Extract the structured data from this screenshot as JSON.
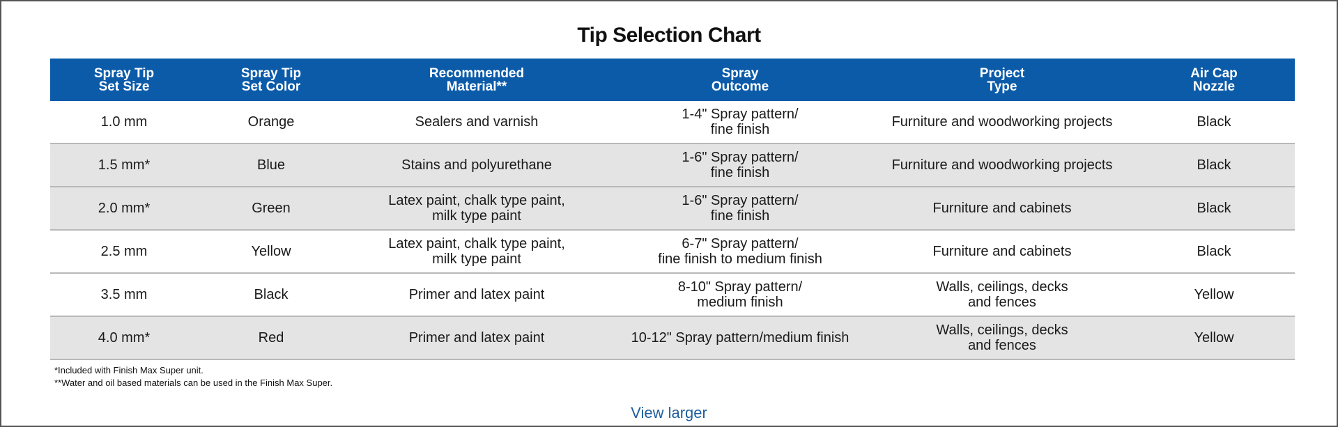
{
  "header": {
    "title": "Tip Selection Chart"
  },
  "table": {
    "columns": [
      "Spray Tip\nSet Size",
      "Spray Tip\nSet Color",
      "Recommended\nMaterial**",
      "Spray\nOutcome",
      "Project\nType",
      "Air Cap\nNozzle"
    ],
    "rows": [
      [
        "1.0 mm",
        "Orange",
        "Sealers and varnish",
        "1-4\" Spray pattern/\nfine finish",
        "Furniture and woodworking projects",
        "Black"
      ],
      [
        "1.5 mm*",
        "Blue",
        "Stains and polyurethane",
        "1-6\" Spray pattern/\nfine finish",
        "Furniture and woodworking projects",
        "Black"
      ],
      [
        "2.0 mm*",
        "Green",
        "Latex paint, chalk type paint,\nmilk type paint",
        "1-6\" Spray pattern/\nfine finish",
        "Furniture and cabinets",
        "Black"
      ],
      [
        "2.5 mm",
        "Yellow",
        "Latex paint, chalk type paint,\nmilk type paint",
        "6-7\" Spray pattern/\nfine finish to medium finish",
        "Furniture and cabinets",
        "Black"
      ],
      [
        "3.5 mm",
        "Black",
        "Primer and latex paint",
        "8-10\" Spray pattern/\nmedium finish",
        "Walls, ceilings, decks\nand fences",
        "Yellow"
      ],
      [
        "4.0 mm*",
        "Red",
        "Primer and latex paint",
        "10-12\" Spray pattern/medium finish",
        "Walls, ceilings, decks\nand fences",
        "Yellow"
      ]
    ]
  },
  "footnotes": [
    "*Included with Finish Max Super unit.",
    "**Water and oil based materials can be used in the Finish Max Super."
  ],
  "link": "View larger"
}
